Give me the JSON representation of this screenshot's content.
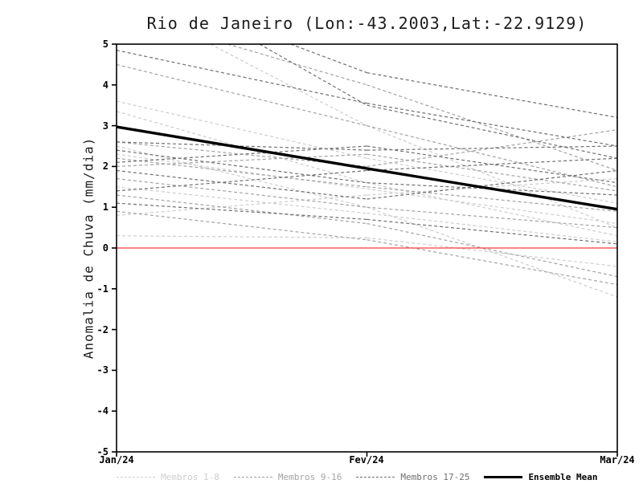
{
  "chart_data": {
    "type": "line",
    "title": "Rio de Janeiro (Lon:-43.2003,Lat:-22.9129)",
    "ylabel": "Anomalia de Chuva (mm/dia)",
    "categories": [
      "Jan/24",
      "Fev/24",
      "Mar/24"
    ],
    "ylim": [
      -5,
      5
    ],
    "yticks": [
      -5,
      -4,
      -3,
      -2,
      -1,
      0,
      1,
      2,
      3,
      4,
      5
    ],
    "zero_line_color": "#fa3c3c",
    "frame_color": "#000000",
    "legend_position": "bottom",
    "grid": false,
    "groups": [
      {
        "name": "Membros 1-8",
        "color": "#cdcdcd",
        "dash": true,
        "width": 1.2,
        "series": [
          [
            3.6,
            2.2,
            1.1
          ],
          [
            3.35,
            1.6,
            0.3
          ],
          [
            2.5,
            1.0,
            -1.2
          ],
          [
            2.3,
            1.45,
            0.6
          ],
          [
            1.5,
            0.85,
            0.15
          ],
          [
            0.8,
            1.3,
            1.7
          ],
          [
            0.3,
            0.25,
            -0.45
          ],
          [
            6.2,
            3.0,
            0.5
          ]
        ]
      },
      {
        "name": "Membros 9-16",
        "color": "#a3a3a3",
        "dash": true,
        "width": 1.2,
        "series": [
          [
            4.5,
            3.0,
            1.5
          ],
          [
            2.6,
            2.0,
            2.9
          ],
          [
            2.2,
            1.5,
            0.9
          ],
          [
            2.0,
            2.3,
            1.4
          ],
          [
            1.7,
            1.0,
            0.5
          ],
          [
            1.3,
            0.6,
            -0.7
          ],
          [
            5.8,
            4.0,
            1.9
          ],
          [
            0.9,
            0.2,
            -0.9
          ]
        ]
      },
      {
        "name": "Membros 17-25",
        "color": "#6f6f6f",
        "dash": true,
        "width": 1.2,
        "series": [
          [
            4.85,
            3.55,
            2.5
          ],
          [
            6.6,
            4.3,
            3.2
          ],
          [
            2.6,
            2.4,
            2.5
          ],
          [
            2.4,
            1.6,
            1.3
          ],
          [
            2.1,
            2.5,
            1.6
          ],
          [
            1.9,
            1.2,
            1.9
          ],
          [
            1.4,
            1.9,
            2.2
          ],
          [
            1.1,
            0.7,
            0.1
          ],
          [
            7.0,
            3.5,
            2.2
          ]
        ]
      },
      {
        "name": "Ensemble Mean",
        "color": "#000000",
        "dash": false,
        "width": 3.4,
        "series": [
          [
            2.97,
            1.95,
            0.95
          ]
        ]
      }
    ]
  }
}
